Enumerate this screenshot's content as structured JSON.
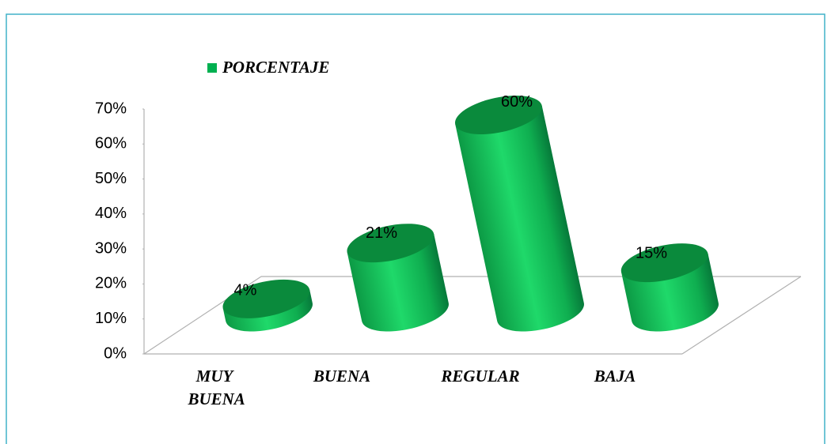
{
  "chart_data": {
    "type": "bar3d",
    "legend": "PORCENTAJE",
    "categories": [
      "MUY BUENA",
      "BUENA",
      "REGULAR",
      "BAJA"
    ],
    "values": [
      4,
      21,
      60,
      15
    ],
    "value_labels": [
      "4%",
      "21%",
      "60%",
      "15%"
    ],
    "color": "#00b050",
    "ylim": [
      0,
      70
    ],
    "yticks": [
      {
        "value": 0,
        "label": "0%"
      },
      {
        "value": 10,
        "label": "10%"
      },
      {
        "value": 20,
        "label": "20%"
      },
      {
        "value": 30,
        "label": "30%"
      },
      {
        "value": 40,
        "label": "40%"
      },
      {
        "value": 50,
        "label": "50%"
      },
      {
        "value": 60,
        "label": "60%"
      },
      {
        "value": 70,
        "label": "70%"
      }
    ],
    "legend_position": "top"
  }
}
